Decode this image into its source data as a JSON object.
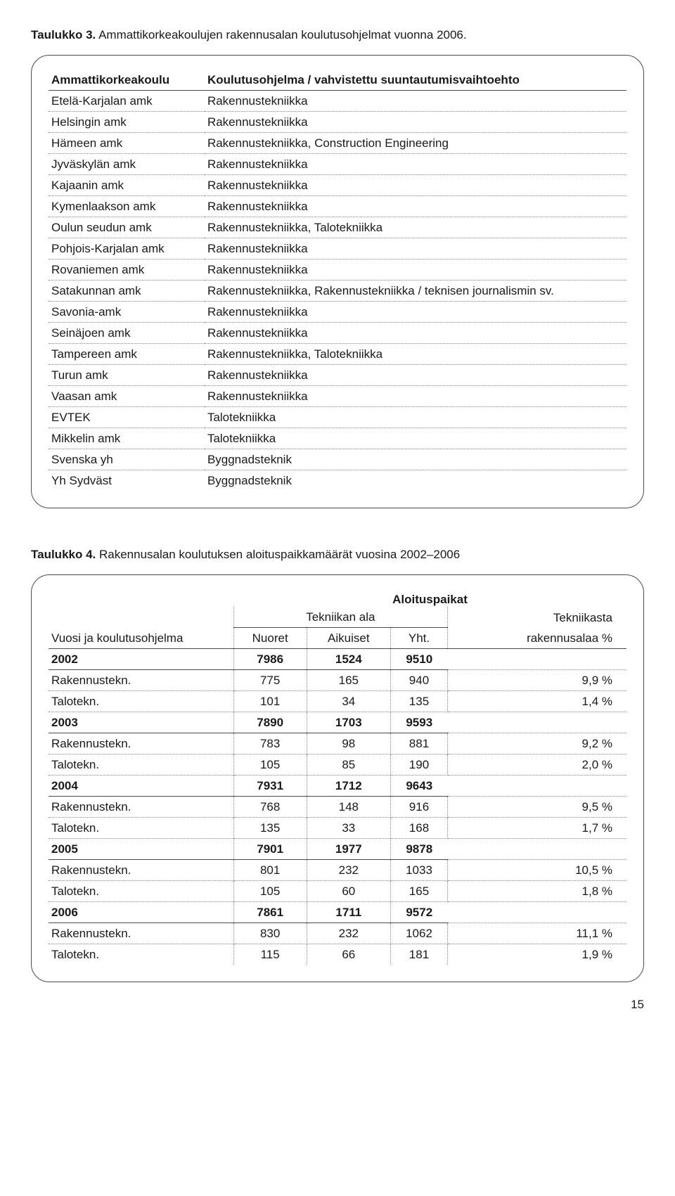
{
  "table3": {
    "caption_label": "Taulukko 3.",
    "caption_text": "Ammattikorkeakoulujen rakennusalan koulutusohjelmat vuonna 2006.",
    "headers": [
      "Ammattikorkeakoulu",
      "Koulutusohjelma / vahvistettu suuntautumisvaihtoehto"
    ],
    "rows": [
      [
        "Etelä-Karjalan amk",
        "Rakennustekniikka"
      ],
      [
        "Helsingin amk",
        "Rakennustekniikka"
      ],
      [
        "Hämeen amk",
        "Rakennustekniikka, Construction Engineering"
      ],
      [
        "Jyväskylän amk",
        "Rakennustekniikka"
      ],
      [
        "Kajaanin amk",
        "Rakennustekniikka"
      ],
      [
        "Kymenlaakson amk",
        "Rakennustekniikka"
      ],
      [
        "Oulun seudun amk",
        "Rakennustekniikka, Talotekniikka"
      ],
      [
        "Pohjois-Karjalan amk",
        "Rakennustekniikka"
      ],
      [
        "Rovaniemen amk",
        "Rakennustekniikka"
      ],
      [
        "Satakunnan amk",
        "Rakennustekniikka, Rakennustekniikka / teknisen journalismin sv."
      ],
      [
        "Savonia-amk",
        "Rakennustekniikka"
      ],
      [
        "Seinäjoen amk",
        "Rakennustekniikka"
      ],
      [
        "Tampereen amk",
        "Rakennustekniikka, Talotekniikka"
      ],
      [
        "Turun amk",
        "Rakennustekniikka"
      ],
      [
        "Vaasan amk",
        "Rakennustekniikka"
      ],
      [
        "EVTEK",
        "Talotekniikka"
      ],
      [
        "Mikkelin amk",
        "Talotekniikka"
      ],
      [
        "Svenska yh",
        "Byggnadsteknik"
      ],
      [
        "Yh Sydväst",
        "Byggnadsteknik"
      ]
    ]
  },
  "table4": {
    "caption_label": "Taulukko 4.",
    "caption_text": "Rakennusalan koulutuksen aloituspaikkamäärät vuosina 2002–2006",
    "h_group": "Aloituspaikat",
    "h_sub1": "Tekniikan ala",
    "h_sub2_top": "Tekniikasta",
    "h_sub2_bot": "rakennusalaa %",
    "h_col1": "Vuosi ja koulutusohjelma",
    "h_nuoret": "Nuoret",
    "h_aikuiset": "Aikuiset",
    "h_yht": "Yht.",
    "rows": [
      {
        "type": "yr",
        "c1": "2002",
        "n": "7986",
        "a": "1524",
        "y": "9510",
        "p": ""
      },
      {
        "type": "d",
        "c1": "Rakennustekn.",
        "n": "775",
        "a": "165",
        "y": "940",
        "p": "9,9 %"
      },
      {
        "type": "d",
        "c1": "Talotekn.",
        "n": "101",
        "a": "34",
        "y": "135",
        "p": "1,4 %"
      },
      {
        "type": "yr",
        "c1": "2003",
        "n": "7890",
        "a": "1703",
        "y": "9593",
        "p": ""
      },
      {
        "type": "d",
        "c1": "Rakennustekn.",
        "n": "783",
        "a": "98",
        "y": "881",
        "p": "9,2 %"
      },
      {
        "type": "d",
        "c1": "Talotekn.",
        "n": "105",
        "a": "85",
        "y": "190",
        "p": "2,0 %"
      },
      {
        "type": "yr",
        "c1": "2004",
        "n": "7931",
        "a": "1712",
        "y": "9643",
        "p": ""
      },
      {
        "type": "d",
        "c1": "Rakennustekn.",
        "n": "768",
        "a": "148",
        "y": "916",
        "p": "9,5 %"
      },
      {
        "type": "d",
        "c1": "Talotekn.",
        "n": "135",
        "a": "33",
        "y": "168",
        "p": "1,7 %"
      },
      {
        "type": "yr",
        "c1": "2005",
        "n": "7901",
        "a": "1977",
        "y": "9878",
        "p": ""
      },
      {
        "type": "d",
        "c1": "Rakennustekn.",
        "n": "801",
        "a": "232",
        "y": "1033",
        "p": "10,5 %"
      },
      {
        "type": "d",
        "c1": "Talotekn.",
        "n": "105",
        "a": "60",
        "y": "165",
        "p": "1,8 %"
      },
      {
        "type": "yr",
        "c1": "2006",
        "n": "7861",
        "a": "1711",
        "y": "9572",
        "p": ""
      },
      {
        "type": "d",
        "c1": "Rakennustekn.",
        "n": "830",
        "a": "232",
        "y": "1062",
        "p": "11,1 %"
      },
      {
        "type": "d",
        "c1": "Talotekn.",
        "n": "115",
        "a": "66",
        "y": "181",
        "p": "1,9 %"
      }
    ]
  },
  "page_number": "15"
}
